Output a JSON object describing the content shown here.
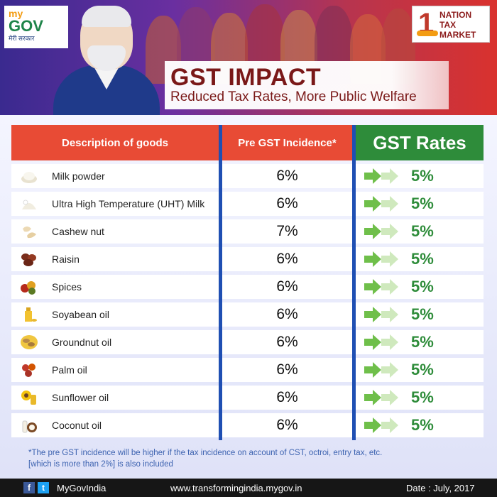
{
  "header": {
    "mygov": {
      "my": "my",
      "gov": "GOV",
      "tagline": "मेरी सरकार"
    },
    "ntm": {
      "number": "1",
      "line1": "NATION",
      "line2": "TAX",
      "line3": "MARKET"
    },
    "title": "GST IMPACT",
    "subtitle": "Reduced Tax Rates, More Public Welfare"
  },
  "table": {
    "headers": {
      "description": "Description of goods",
      "pre_gst": "Pre GST Incidence*",
      "gst": "GST Rates"
    },
    "rows": [
      {
        "item": "Milk powder",
        "pre": "6%",
        "gst": "5%",
        "icon": "milk-powder-icon"
      },
      {
        "item": "Ultra High Temperature (UHT) Milk",
        "pre": "6%",
        "gst": "5%",
        "icon": "milk-icon"
      },
      {
        "item": "Cashew nut",
        "pre": "7%",
        "gst": "5%",
        "icon": "cashew-icon"
      },
      {
        "item": "Raisin",
        "pre": "6%",
        "gst": "5%",
        "icon": "raisin-icon"
      },
      {
        "item": "Spices",
        "pre": "6%",
        "gst": "5%",
        "icon": "spices-icon"
      },
      {
        "item": " Soyabean oil",
        "pre": "6%",
        "gst": "5%",
        "icon": "oil-bottle-icon"
      },
      {
        "item": "Groundnut oil",
        "pre": "6%",
        "gst": "5%",
        "icon": "groundnut-icon"
      },
      {
        "item": "Palm oil",
        "pre": "6%",
        "gst": "5%",
        "icon": "palm-fruit-icon"
      },
      {
        "item": "Sunflower oil",
        "pre": "6%",
        "gst": "5%",
        "icon": "sunflower-icon"
      },
      {
        "item": "Coconut oil",
        "pre": "6%",
        "gst": "5%",
        "icon": "coconut-icon"
      }
    ],
    "footnote_line1": "*The pre GST incidence will be higher if the tax incidence on account of CST, octroi, entry tax, etc.",
    "footnote_line2": "[which is more than 2%] is also included"
  },
  "footer": {
    "facebook": "f",
    "twitter": "t",
    "handle": "MyGovIndia",
    "url": "www.transformingindia.mygov.in",
    "date": "Date : July, 2017"
  },
  "colors": {
    "header_red": "#e84b35",
    "header_green": "#2e8c3a",
    "divider_blue": "#1f4fb3",
    "title_maroon": "#7a1818"
  }
}
